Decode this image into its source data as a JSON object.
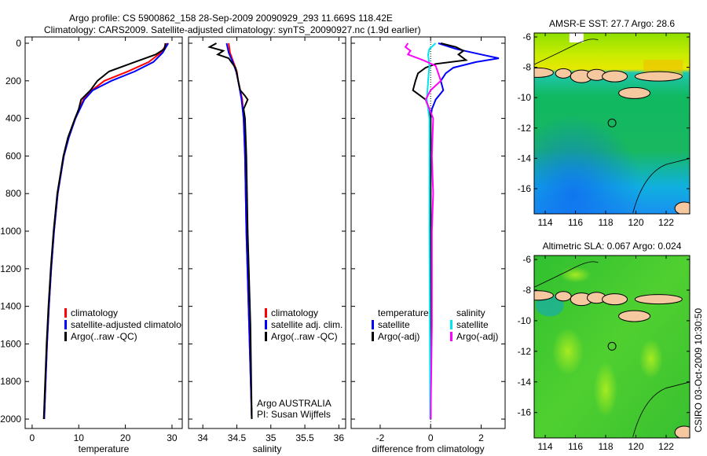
{
  "title": {
    "line1": "Argo profile: CS 5900862_158 28-Sep-2009 20090929_293 11.669S 118.42E",
    "line2": "Climatology: CARS2009. Satellite-adjusted climatology: synTS_20090927.nc (1.9d earlier)"
  },
  "side_stamp": "CSIRO 03-Oct-2009 10:30:50",
  "colors": {
    "climatology": "#ff0000",
    "satellite": "#0000ff",
    "argo": "#000000",
    "sal_satellite": "#00e5ee",
    "sal_argo": "#ff00ff",
    "land": "#f5c8a0"
  },
  "chart_data": [
    {
      "type": "line",
      "xlabel": "temperature",
      "ylabel": "",
      "xlim": [
        -1.5,
        32.2
      ],
      "ylim": [
        2050,
        0
      ],
      "xticks": [
        0,
        10,
        20,
        30
      ],
      "yticks": [
        0,
        200,
        400,
        600,
        800,
        1000,
        1200,
        1400,
        1600,
        1800,
        2000
      ],
      "legend": [
        "climatology",
        "satellite-adjusted climatology",
        "Argo(..raw -QC)"
      ],
      "series": [
        {
          "name": "climatology",
          "color": "#ff0000",
          "depth": [
            0,
            50,
            100,
            150,
            200,
            250,
            300,
            400,
            500,
            600,
            800,
            1000,
            1200,
            1400,
            1600,
            1800,
            2000
          ],
          "values": [
            29.0,
            27.6,
            25.0,
            20.5,
            15.5,
            12.8,
            11.0,
            9.2,
            7.8,
            6.8,
            5.5,
            4.7,
            4.1,
            3.6,
            3.2,
            2.9,
            2.6
          ]
        },
        {
          "name": "satellite-adjusted climatology",
          "color": "#0000ff",
          "depth": [
            0,
            50,
            100,
            150,
            200,
            250,
            300,
            400,
            500,
            600,
            800,
            1000,
            1200,
            1400,
            1600,
            1800,
            2000
          ],
          "values": [
            29.2,
            28.0,
            26.0,
            22.0,
            17.0,
            13.0,
            11.2,
            9.3,
            7.9,
            6.8,
            5.5,
            4.7,
            4.1,
            3.6,
            3.2,
            2.9,
            2.6
          ]
        },
        {
          "name": "Argo(..raw -QC)",
          "color": "#000000",
          "depth": [
            0,
            30,
            60,
            100,
            150,
            200,
            250,
            300,
            350,
            400,
            500,
            600,
            800,
            1000,
            1200,
            1400,
            1600,
            1800,
            2000
          ],
          "values": [
            28.6,
            28.4,
            26.5,
            22.0,
            16.5,
            14.0,
            12.5,
            10.5,
            10.0,
            9.2,
            7.7,
            6.7,
            5.4,
            4.6,
            4.0,
            3.5,
            3.1,
            2.8,
            2.5
          ]
        }
      ]
    },
    {
      "type": "line",
      "xlabel": "salinity",
      "xlim": [
        33.79,
        36.1
      ],
      "ylim": [
        2050,
        0
      ],
      "xticks": [
        34,
        34.5,
        35,
        35.5,
        36
      ],
      "yticks": [
        0,
        200,
        400,
        600,
        800,
        1000,
        1200,
        1400,
        1600,
        1800,
        2000
      ],
      "legend": [
        "climatology",
        "satellite adj. clim.",
        "Argo(..raw -QC)"
      ],
      "annotation": [
        "Argo AUSTRALIA",
        "PI: Susan Wijffels"
      ],
      "series": [
        {
          "name": "climatology",
          "color": "#ff0000",
          "depth": [
            0,
            50,
            100,
            150,
            200,
            300,
            400,
            600,
            1000,
            1500,
            2000
          ],
          "values": [
            34.38,
            34.4,
            34.45,
            34.5,
            34.52,
            34.58,
            34.6,
            34.62,
            34.64,
            34.68,
            34.72
          ]
        },
        {
          "name": "satellite adj. clim.",
          "color": "#0000ff",
          "depth": [
            0,
            50,
            100,
            150,
            200,
            300,
            400,
            600,
            1000,
            1500,
            2000
          ],
          "values": [
            34.35,
            34.38,
            34.44,
            34.49,
            34.52,
            34.57,
            34.6,
            34.62,
            34.64,
            34.68,
            34.72
          ]
        },
        {
          "name": "Argo(..raw -QC)",
          "color": "#000000",
          "depth": [
            0,
            20,
            40,
            60,
            80,
            100,
            130,
            160,
            200,
            250,
            280,
            300,
            350,
            400,
            600,
            1000,
            1500,
            2000
          ],
          "values": [
            34.2,
            34.1,
            34.3,
            34.22,
            34.38,
            34.42,
            34.48,
            34.5,
            34.52,
            34.55,
            34.62,
            34.66,
            34.6,
            34.62,
            34.64,
            34.66,
            34.7,
            34.72
          ]
        }
      ]
    },
    {
      "type": "line",
      "xlabel": "difference from climatology",
      "xlim": [
        -3.15,
        2.95
      ],
      "ylim": [
        2050,
        0
      ],
      "xticks": [
        -2,
        0,
        2
      ],
      "yticks": [
        0,
        200,
        400,
        600,
        800,
        1000,
        1200,
        1400,
        1600,
        1800,
        2000
      ],
      "legend_temperature": {
        "heading": "temperature",
        "items": [
          "satellite",
          "Argo(-adj)"
        ]
      },
      "legend_salinity": {
        "heading": "salinity",
        "items": [
          "satellite",
          "Argo(-adj)"
        ]
      },
      "series": [
        {
          "name": "temperature satellite",
          "color": "#0000ff",
          "depth": [
            0,
            30,
            60,
            80,
            100,
            130,
            160,
            200,
            250,
            300,
            350,
            400,
            600,
            1000,
            2000
          ],
          "values": [
            0.3,
            1.0,
            2.0,
            2.7,
            1.8,
            0.9,
            0.6,
            0.4,
            0.5,
            0.2,
            0.05,
            0.0,
            0.0,
            0.0,
            0.0
          ]
        },
        {
          "name": "temperature Argo(-adj)",
          "color": "#000000",
          "depth": [
            0,
            20,
            40,
            60,
            90,
            110,
            130,
            160,
            200,
            250,
            280,
            300,
            350,
            400,
            600,
            1000,
            2000
          ],
          "values": [
            0.4,
            1.0,
            1.3,
            1.1,
            1.4,
            0.2,
            -0.2,
            -0.5,
            -0.6,
            -0.7,
            -0.4,
            -0.2,
            -0.05,
            0.0,
            0.0,
            0.0,
            0.0
          ]
        },
        {
          "name": "salinity satellite",
          "color": "#00e5ee",
          "depth": [
            0,
            30,
            60,
            120,
            200,
            300,
            400,
            1000,
            2000
          ],
          "values": [
            0.2,
            -0.05,
            -0.1,
            -0.05,
            -0.1,
            -0.15,
            -0.05,
            -0.05,
            -0.02
          ]
        },
        {
          "name": "salinity Argo(-adj)",
          "color": "#ff00ff",
          "depth": [
            0,
            20,
            40,
            60,
            90,
            120,
            160,
            200,
            250,
            300,
            400,
            600,
            800,
            1000,
            1500,
            2000
          ],
          "values": [
            -0.9,
            -1.0,
            -0.8,
            -0.9,
            -0.3,
            0.2,
            0.3,
            0.4,
            0.0,
            -0.2,
            0.1,
            0.05,
            0.1,
            0.05,
            0.05,
            0.0
          ]
        }
      ]
    },
    {
      "type": "heatmap",
      "title": "AMSR-E SST: 27.7 Argo: 28.6",
      "lon_range": [
        113.27,
        123.56
      ],
      "lat_range": [
        -17.66,
        -5.74
      ],
      "xticks": [
        114,
        116,
        118,
        120,
        122
      ],
      "yticks": [
        -6,
        -8,
        -10,
        -12,
        -14,
        -16
      ],
      "float_position": {
        "lon": 118.42,
        "lat": -11.669
      }
    },
    {
      "type": "heatmap",
      "title": "Altimetric SLA: 0.067 Argo: 0.024",
      "lon_range": [
        113.27,
        123.56
      ],
      "lat_range": [
        -17.66,
        -5.74
      ],
      "xticks": [
        114,
        116,
        118,
        120,
        122
      ],
      "yticks": [
        -6,
        -8,
        -10,
        -12,
        -14,
        -16
      ],
      "float_position": {
        "lon": 118.42,
        "lat": -11.669
      }
    }
  ]
}
